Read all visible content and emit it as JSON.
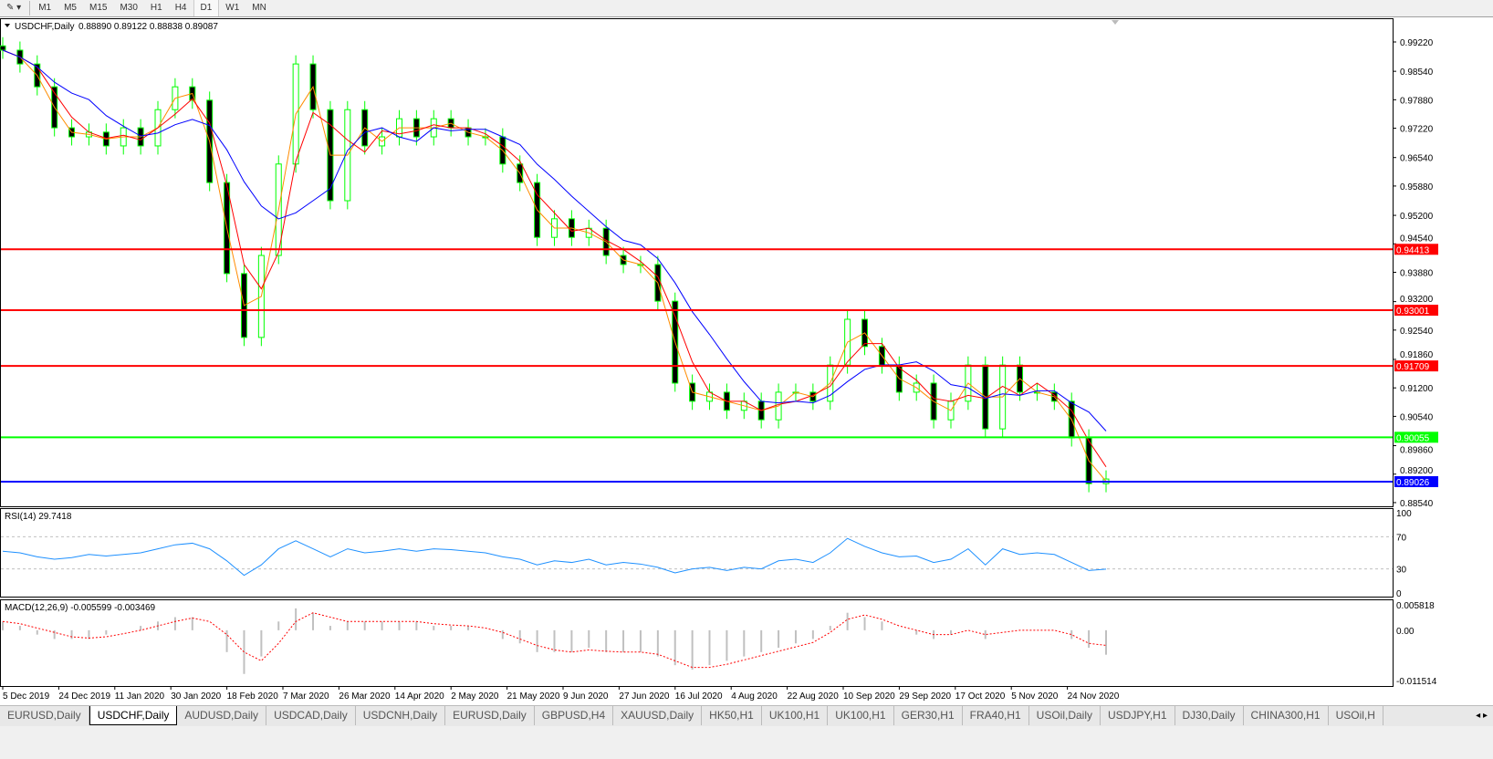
{
  "toolbar": {
    "timeframes": [
      "M1",
      "M5",
      "M15",
      "M30",
      "H1",
      "H4",
      "D1",
      "W1",
      "MN"
    ],
    "active": "D1"
  },
  "chart_header": {
    "symbol": "USDCHF,Daily",
    "ohlc": "0.88890 0.89122 0.88838 0.89087"
  },
  "colors": {
    "bull": "#00ff00",
    "bear": "#00ff00",
    "ma_fast": "#ff8c00",
    "ma_mid": "#ff0000",
    "ma_slow": "#0000ff",
    "rsi": "#1e90ff",
    "macd_hist": "#c0c0c0",
    "macd_signal": "#ff0000"
  },
  "chart_data": [
    {
      "type": "candlestick",
      "title": "USDCHF,Daily",
      "xlim": [
        "5 Dec 2019",
        "1 Dec 2020"
      ],
      "ylim": [
        0.884,
        0.994
      ],
      "y_ticks": [
        "0.99220",
        "0.98540",
        "0.97880",
        "0.97220",
        "0.96540",
        "0.95880",
        "0.95200",
        "0.94540",
        "0.93880",
        "0.93200",
        "0.92540",
        "0.91860",
        "0.91200",
        "0.90540",
        "0.89860",
        "0.89200",
        "0.88540"
      ],
      "x_tick_labels": [
        "5 Dec 2019",
        "24 Dec 2019",
        "11 Jan 2020",
        "30 Jan 2020",
        "18 Feb 2020",
        "7 Mar 2020",
        "26 Mar 2020",
        "14 Apr 2020",
        "2 May 2020",
        "21 May 2020",
        "9 Jun 2020",
        "27 Jun 2020",
        "16 Jul 2020",
        "4 Aug 2020",
        "22 Aug 2020",
        "10 Sep 2020",
        "29 Sep 2020",
        "17 Oct 2020",
        "5 Nov 2020",
        "24 Nov 2020"
      ],
      "closes": [
        0.9903,
        0.9871,
        0.9818,
        0.9723,
        0.9702,
        0.9713,
        0.9681,
        0.9723,
        0.9681,
        0.9765,
        0.9818,
        0.9787,
        0.9596,
        0.9385,
        0.9237,
        0.9427,
        0.9639,
        0.9871,
        0.9765,
        0.9554,
        0.9765,
        0.9681,
        0.9702,
        0.9744,
        0.9702,
        0.9744,
        0.9723,
        0.9702,
        0.9702,
        0.9639,
        0.9596,
        0.9469,
        0.9512,
        0.9469,
        0.949,
        0.9427,
        0.9406,
        0.9406,
        0.9321,
        0.9131,
        0.9089,
        0.911,
        0.9068,
        0.9089,
        0.9046,
        0.911,
        0.911,
        0.9089,
        0.9173,
        0.9279,
        0.9216,
        0.9173,
        0.911,
        0.9131,
        0.9046,
        0.9089,
        0.9173,
        0.9025,
        0.9173,
        0.911,
        0.911,
        0.9089,
        0.9004,
        0.8898,
        0.89087
      ],
      "hlines": [
        {
          "price": "0.94413",
          "color": "#ff0000"
        },
        {
          "price": "0.93001",
          "color": "#ff0000"
        },
        {
          "price": "0.91709",
          "color": "#ff0000"
        },
        {
          "price": "0.90055",
          "color": "#00ff00"
        },
        {
          "price": "0.89026",
          "color": "#0000ff"
        }
      ]
    },
    {
      "type": "line",
      "title": "RSI(14) 29.7418",
      "ylim": [
        0,
        100
      ],
      "y_ticks": [
        "100",
        "70",
        "30",
        "0"
      ],
      "levels": [
        70,
        30
      ],
      "values": [
        52,
        50,
        45,
        42,
        44,
        48,
        46,
        48,
        50,
        55,
        60,
        62,
        55,
        40,
        22,
        35,
        55,
        65,
        55,
        45,
        55,
        50,
        52,
        55,
        52,
        55,
        54,
        52,
        50,
        45,
        42,
        35,
        40,
        38,
        42,
        35,
        38,
        36,
        32,
        25,
        30,
        32,
        28,
        32,
        30,
        40,
        42,
        38,
        50,
        68,
        58,
        50,
        45,
        46,
        38,
        42,
        55,
        35,
        55,
        48,
        50,
        48,
        38,
        28,
        29.7418
      ]
    },
    {
      "type": "bar",
      "title": "MACD(12,26,9) -0.005599 -0.003469",
      "ylim": [
        -0.011514,
        0.005818
      ],
      "y_ticks": [
        "0.005818",
        "0.00",
        "-0.011514"
      ],
      "histogram": [
        0.002,
        0.001,
        -0.001,
        -0.002,
        -0.002,
        -0.002,
        -0.001,
        0,
        0.001,
        0.002,
        0.003,
        0.003,
        0,
        -0.005,
        -0.01,
        -0.006,
        0.002,
        0.005,
        0.004,
        0.001,
        0.002,
        0.002,
        0.002,
        0.002,
        0.002,
        0.001,
        0.001,
        0.001,
        0,
        -0.002,
        -0.003,
        -0.005,
        -0.005,
        -0.005,
        -0.004,
        -0.005,
        -0.005,
        -0.005,
        -0.006,
        -0.008,
        -0.009,
        -0.008,
        -0.007,
        -0.006,
        -0.005,
        -0.004,
        -0.003,
        -0.002,
        0.001,
        0.004,
        0.003,
        0.002,
        0,
        -0.001,
        -0.002,
        -0.001,
        0,
        -0.002,
        0,
        0,
        0,
        0,
        -0.002,
        -0.004,
        -0.005599
      ],
      "signal": [
        0.002,
        0.0015,
        0.0005,
        -0.0005,
        -0.0015,
        -0.0018,
        -0.0015,
        -0.0008,
        0,
        0.001,
        0.002,
        0.0028,
        0.002,
        -0.001,
        -0.005,
        -0.007,
        -0.003,
        0.002,
        0.004,
        0.003,
        0.002,
        0.002,
        0.002,
        0.002,
        0.002,
        0.0015,
        0.0012,
        0.001,
        0.0005,
        -0.0005,
        -0.002,
        -0.0035,
        -0.0045,
        -0.005,
        -0.0045,
        -0.0048,
        -0.005,
        -0.005,
        -0.0055,
        -0.007,
        -0.0085,
        -0.0085,
        -0.0078,
        -0.0068,
        -0.0058,
        -0.0048,
        -0.0038,
        -0.0028,
        -0.0005,
        0.0025,
        0.0035,
        0.0025,
        0.001,
        0,
        -0.001,
        -0.001,
        0,
        -0.001,
        -0.0005,
        0,
        0,
        0,
        -0.001,
        -0.003,
        -0.003469
      ]
    }
  ],
  "tabs": [
    "EURUSD,Daily",
    "USDCHF,Daily",
    "AUDUSD,Daily",
    "USDCAD,Daily",
    "USDCNH,Daily",
    "EURUSD,Daily",
    "GBPUSD,H4",
    "XAUUSD,Daily",
    "HK50,H1",
    "UK100,H1",
    "UK100,H1",
    "GER30,H1",
    "FRA40,H1",
    "USOil,Daily",
    "USDJPY,H1",
    "DJ30,Daily",
    "CHINA300,H1",
    "USOil,H"
  ],
  "active_tab": "USDCHF,Daily"
}
